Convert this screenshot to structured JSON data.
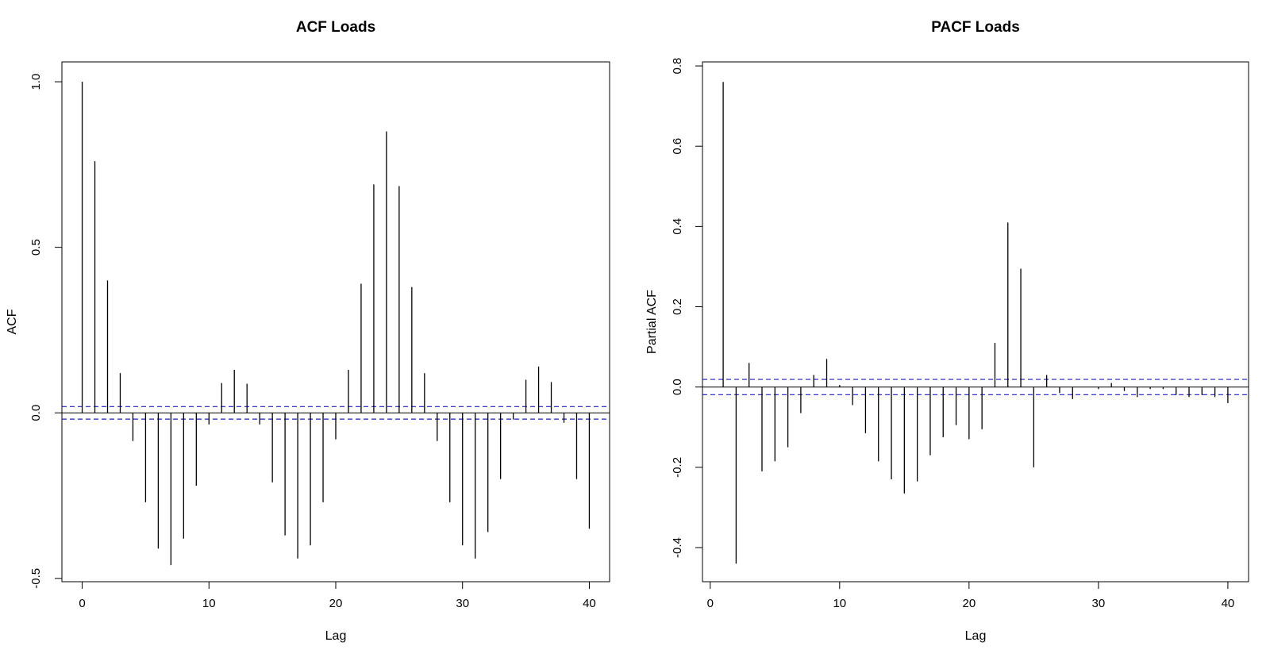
{
  "chart_data": [
    {
      "type": "bar",
      "title": "ACF Loads",
      "xlabel": "Lag",
      "ylabel": "ACF",
      "xlim": [
        -1.6,
        41.6
      ],
      "ylim": [
        -0.51,
        1.06
      ],
      "xticks": [
        0,
        10,
        20,
        30,
        40
      ],
      "yticks": [
        -0.5,
        0.0,
        0.5,
        1.0
      ],
      "ytick_labels": [
        "-0.5",
        "0.0",
        "0.5",
        "1.0"
      ],
      "lags": [
        0,
        1,
        2,
        3,
        4,
        5,
        6,
        7,
        8,
        9,
        10,
        11,
        12,
        13,
        14,
        15,
        16,
        17,
        18,
        19,
        20,
        21,
        22,
        23,
        24,
        25,
        26,
        27,
        28,
        29,
        30,
        31,
        32,
        33,
        34,
        35,
        36,
        37,
        38,
        39,
        40
      ],
      "values": [
        1.0,
        0.76,
        0.4,
        0.12,
        -0.085,
        -0.27,
        -0.41,
        -0.46,
        -0.38,
        -0.22,
        -0.035,
        0.09,
        0.13,
        0.088,
        -0.035,
        -0.21,
        -0.37,
        -0.44,
        -0.4,
        -0.27,
        -0.08,
        0.13,
        0.39,
        0.69,
        0.85,
        0.685,
        0.38,
        0.12,
        -0.085,
        -0.27,
        -0.4,
        -0.44,
        -0.36,
        -0.2,
        -0.02,
        0.1,
        0.14,
        0.093,
        -0.03,
        -0.2,
        -0.35
      ],
      "confidence_band": [
        -0.019,
        0.019
      ],
      "confidence_color": "#1f1fbf"
    },
    {
      "type": "bar",
      "title": "PACF Loads",
      "xlabel": "Lag",
      "ylabel": "Partial ACF",
      "xlim": [
        -0.6,
        41.6
      ],
      "ylim": [
        -0.485,
        0.81
      ],
      "xticks": [
        0,
        10,
        20,
        30,
        40
      ],
      "yticks": [
        -0.4,
        -0.2,
        0.0,
        0.2,
        0.4,
        0.6,
        0.8
      ],
      "ytick_labels": [
        "-0.4",
        "-0.2",
        "0.0",
        "0.2",
        "0.4",
        "0.6",
        "0.8"
      ],
      "lags": [
        1,
        2,
        3,
        4,
        5,
        6,
        7,
        8,
        9,
        10,
        11,
        12,
        13,
        14,
        15,
        16,
        17,
        18,
        19,
        20,
        21,
        22,
        23,
        24,
        25,
        26,
        27,
        28,
        29,
        30,
        31,
        32,
        33,
        34,
        35,
        36,
        37,
        38,
        39,
        40
      ],
      "values": [
        0.76,
        -0.44,
        0.06,
        -0.21,
        -0.185,
        -0.15,
        -0.065,
        0.03,
        0.07,
        0.005,
        -0.045,
        -0.115,
        -0.185,
        -0.23,
        -0.265,
        -0.235,
        -0.17,
        -0.125,
        -0.095,
        -0.13,
        -0.105,
        0.11,
        0.41,
        0.295,
        -0.2,
        0.03,
        -0.015,
        -0.03,
        0.0,
        -0.005,
        0.01,
        -0.01,
        -0.025,
        -0.005,
        -0.005,
        -0.02,
        -0.025,
        -0.02,
        -0.025,
        -0.04
      ],
      "confidence_band": [
        -0.019,
        0.019
      ],
      "confidence_color": "#1f1fbf"
    }
  ]
}
